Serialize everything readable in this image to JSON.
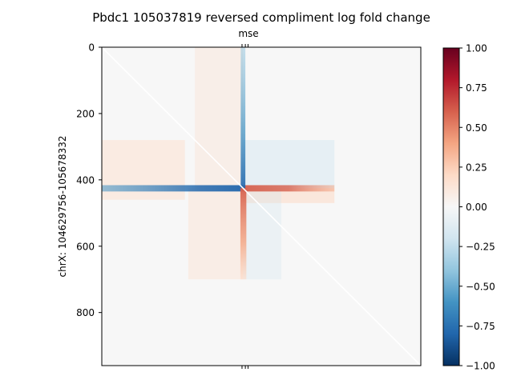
{
  "chart_data": {
    "type": "heatmap",
    "title": "Pbdc1 105037819 reversed compliment log fold change",
    "xlabel": "",
    "ylabel": "chrX: 104629756-105678332",
    "top_axis_label": "mse",
    "top_axis_ticks": 3,
    "matrix_size": 960,
    "ylim": [
      960,
      0
    ],
    "y_ticks": [
      0,
      200,
      400,
      600,
      800
    ],
    "x_ticks": [],
    "colormap": "RdBu_r",
    "colorbar": {
      "vmin": -1.0,
      "vmax": 1.0,
      "ticks": [
        "1.00",
        "0.75",
        "0.50",
        "0.25",
        "0.00",
        "−0.25",
        "−0.50",
        "−0.75",
        "−1.00"
      ]
    },
    "features": {
      "center_bin": 425,
      "data_extent": [
        0,
        700
      ],
      "upper_left_block_rows": [
        280,
        460
      ],
      "diagonal": "white",
      "row_stripe_left": -0.55,
      "row_stripe_right": 0.55,
      "column_stripe_upper": -0.5,
      "column_stripe_lower": 0.6
    },
    "colors": {
      "neutral": "#f7f7f7",
      "negative": "#2166ac",
      "positive": "#d6604d",
      "colorbar_stops": [
        "#67001f",
        "#b2182b",
        "#d6604d",
        "#f4a582",
        "#fddbc7",
        "#f7f7f7",
        "#d1e5f0",
        "#92c5de",
        "#4393c3",
        "#2166ac",
        "#053061"
      ]
    }
  }
}
